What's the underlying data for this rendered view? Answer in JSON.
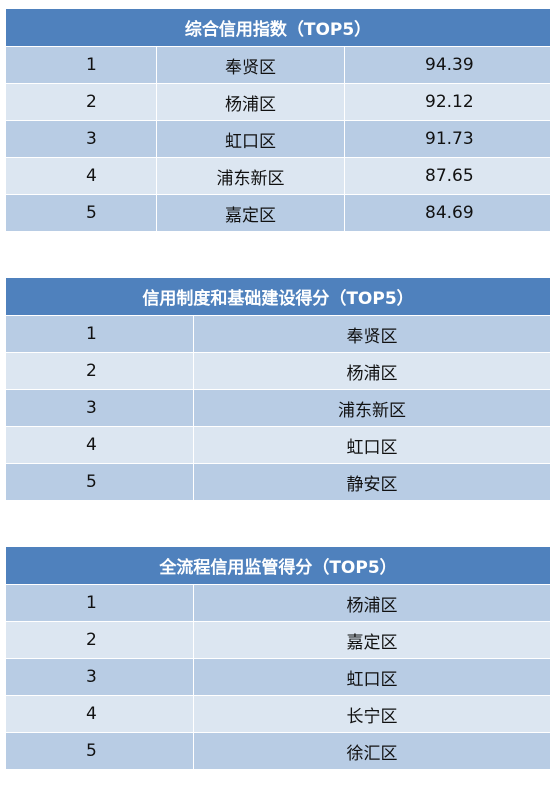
{
  "tables": [
    {
      "title": "综合信用指数（TOP5）",
      "rows": [
        {
          "rank": "1",
          "district": "奉贤区",
          "score": "94.39"
        },
        {
          "rank": "2",
          "district": "杨浦区",
          "score": "92.12"
        },
        {
          "rank": "3",
          "district": "虹口区",
          "score": "91.73"
        },
        {
          "rank": "4",
          "district": "浦东新区",
          "score": "87.65"
        },
        {
          "rank": "5",
          "district": "嘉定区",
          "score": "84.69"
        }
      ]
    },
    {
      "title": "信用制度和基础建设得分（TOP5）",
      "rows": [
        {
          "rank": "1",
          "district": "奉贤区"
        },
        {
          "rank": "2",
          "district": "杨浦区"
        },
        {
          "rank": "3",
          "district": "浦东新区"
        },
        {
          "rank": "4",
          "district": "虹口区"
        },
        {
          "rank": "5",
          "district": "静安区"
        }
      ]
    },
    {
      "title": "全流程信用监管得分（TOP5）",
      "rows": [
        {
          "rank": "1",
          "district": "杨浦区"
        },
        {
          "rank": "2",
          "district": "嘉定区"
        },
        {
          "rank": "3",
          "district": "虹口区"
        },
        {
          "rank": "4",
          "district": "长宁区"
        },
        {
          "rank": "5",
          "district": "徐汇区"
        }
      ]
    }
  ],
  "colors": {
    "header": "#4f81bd",
    "row_dark": "#b8cce4",
    "row_light": "#dce6f1"
  }
}
